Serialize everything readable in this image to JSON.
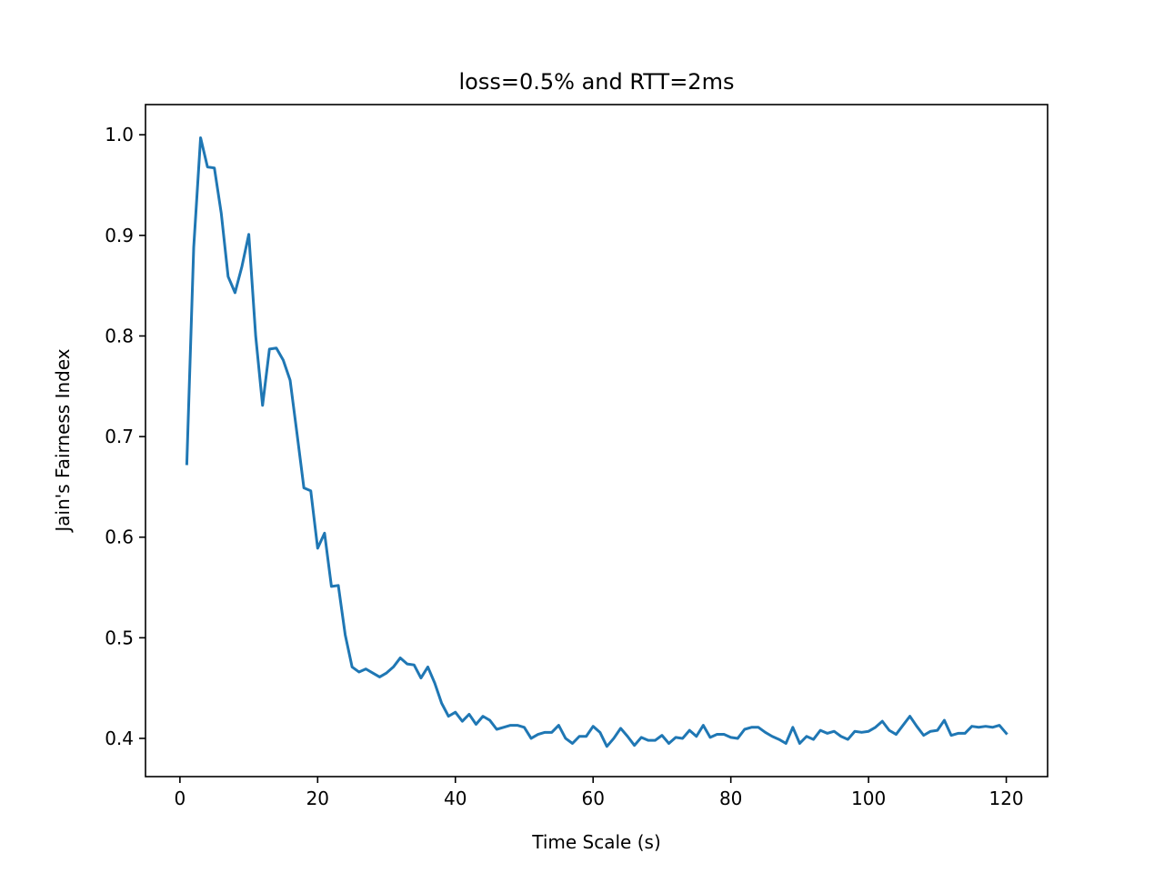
{
  "chart_data": {
    "type": "line",
    "title": "loss=0.5% and RTT=2ms",
    "xlabel": "Time Scale (s)",
    "ylabel": "Jain's Fairness Index",
    "xlim": [
      -5,
      126
    ],
    "ylim": [
      0.362,
      1.03
    ],
    "xticks": [
      0,
      20,
      40,
      60,
      80,
      100,
      120
    ],
    "yticks": [
      0.4,
      0.5,
      0.6,
      0.7,
      0.8,
      0.9,
      1.0
    ],
    "xtick_labels": [
      "0",
      "20",
      "40",
      "60",
      "80",
      "100",
      "120"
    ],
    "ytick_labels": [
      "0.4",
      "0.5",
      "0.6",
      "0.7",
      "0.8",
      "0.9",
      "1.0"
    ],
    "grid": false,
    "series": [
      {
        "color": "#1f77b4",
        "x": [
          1,
          2,
          3,
          4,
          5,
          6,
          7,
          8,
          9,
          10,
          11,
          12,
          13,
          14,
          15,
          16,
          17,
          18,
          19,
          20,
          21,
          22,
          23,
          24,
          25,
          26,
          27,
          28,
          29,
          30,
          31,
          32,
          33,
          34,
          35,
          36,
          37,
          38,
          39,
          40,
          41,
          42,
          43,
          44,
          45,
          46,
          47,
          48,
          49,
          50,
          51,
          52,
          53,
          54,
          55,
          56,
          57,
          58,
          59,
          60,
          61,
          62,
          63,
          64,
          65,
          66,
          67,
          68,
          69,
          70,
          71,
          72,
          73,
          74,
          75,
          76,
          77,
          78,
          79,
          80,
          81,
          82,
          83,
          84,
          85,
          86,
          87,
          88,
          89,
          90,
          91,
          92,
          93,
          94,
          95,
          96,
          97,
          98,
          99,
          100,
          101,
          102,
          103,
          104,
          105,
          106,
          107,
          108,
          109,
          110,
          111,
          112,
          113,
          114,
          115,
          116,
          117,
          118,
          119,
          120
        ],
        "y": [
          0.673,
          0.888,
          0.997,
          0.968,
          0.967,
          0.922,
          0.859,
          0.843,
          0.869,
          0.901,
          0.8,
          0.731,
          0.787,
          0.788,
          0.776,
          0.756,
          0.703,
          0.649,
          0.646,
          0.589,
          0.604,
          0.551,
          0.552,
          0.503,
          0.471,
          0.466,
          0.469,
          0.465,
          0.461,
          0.465,
          0.471,
          0.48,
          0.474,
          0.473,
          0.46,
          0.471,
          0.455,
          0.435,
          0.422,
          0.426,
          0.417,
          0.424,
          0.414,
          0.422,
          0.418,
          0.409,
          0.411,
          0.413,
          0.413,
          0.411,
          0.4,
          0.404,
          0.406,
          0.406,
          0.413,
          0.4,
          0.395,
          0.402,
          0.402,
          0.412,
          0.406,
          0.392,
          0.4,
          0.41,
          0.402,
          0.393,
          0.401,
          0.398,
          0.398,
          0.403,
          0.395,
          0.401,
          0.4,
          0.408,
          0.402,
          0.413,
          0.401,
          0.404,
          0.404,
          0.401,
          0.4,
          0.409,
          0.411,
          0.411,
          0.406,
          0.402,
          0.399,
          0.395,
          0.411,
          0.395,
          0.402,
          0.399,
          0.408,
          0.405,
          0.407,
          0.402,
          0.399,
          0.407,
          0.406,
          0.407,
          0.411,
          0.417,
          0.408,
          0.404,
          0.413,
          0.422,
          0.412,
          0.403,
          0.407,
          0.408,
          0.418,
          0.403,
          0.405,
          0.405,
          0.412,
          0.411,
          0.412,
          0.411,
          0.413,
          0.405
        ]
      }
    ]
  }
}
